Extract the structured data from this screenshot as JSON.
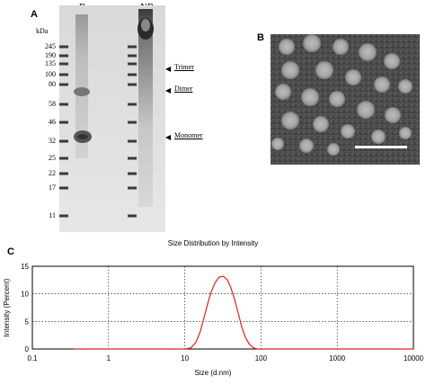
{
  "panel_a": {
    "letter": "A",
    "lane_labels": [
      "R",
      "NR"
    ],
    "kda_unit": "kDa",
    "kda_ticks": [
      "245",
      "190",
      "135",
      "100",
      "80",
      "58",
      "46",
      "32",
      "25",
      "22",
      "17",
      "11"
    ],
    "annotations": [
      "Trimer",
      "Dimer",
      "Monomer"
    ]
  },
  "panel_b": {
    "letter": "B"
  },
  "panel_c": {
    "letter": "C"
  },
  "chart_data": {
    "type": "line",
    "title": "Size Distribution by Intensity",
    "xlabel": "Size (d.nm)",
    "ylabel": "Intensity (Percent)",
    "x_scale": "log",
    "xlim": [
      0.1,
      10000
    ],
    "ylim": [
      0,
      15
    ],
    "x_ticks": [
      "0.1",
      "1",
      "10",
      "100",
      "1000",
      "10000"
    ],
    "y_ticks": [
      "0",
      "5",
      "10",
      "15"
    ],
    "grid": true,
    "series": [
      {
        "color": "#e02020",
        "x": [
          0.35,
          5,
          10,
          12,
          14,
          16,
          18,
          20,
          22,
          25,
          28,
          32,
          36,
          40,
          45,
          50,
          56,
          62,
          70,
          80,
          90,
          100,
          1000,
          10000
        ],
        "y": [
          0,
          0,
          0,
          0.2,
          1.2,
          3.2,
          5.8,
          8.2,
          10.2,
          12.0,
          13.0,
          13.2,
          12.6,
          11.2,
          9.0,
          6.6,
          4.0,
          2.2,
          0.9,
          0.2,
          0,
          0,
          0,
          0
        ]
      }
    ]
  }
}
